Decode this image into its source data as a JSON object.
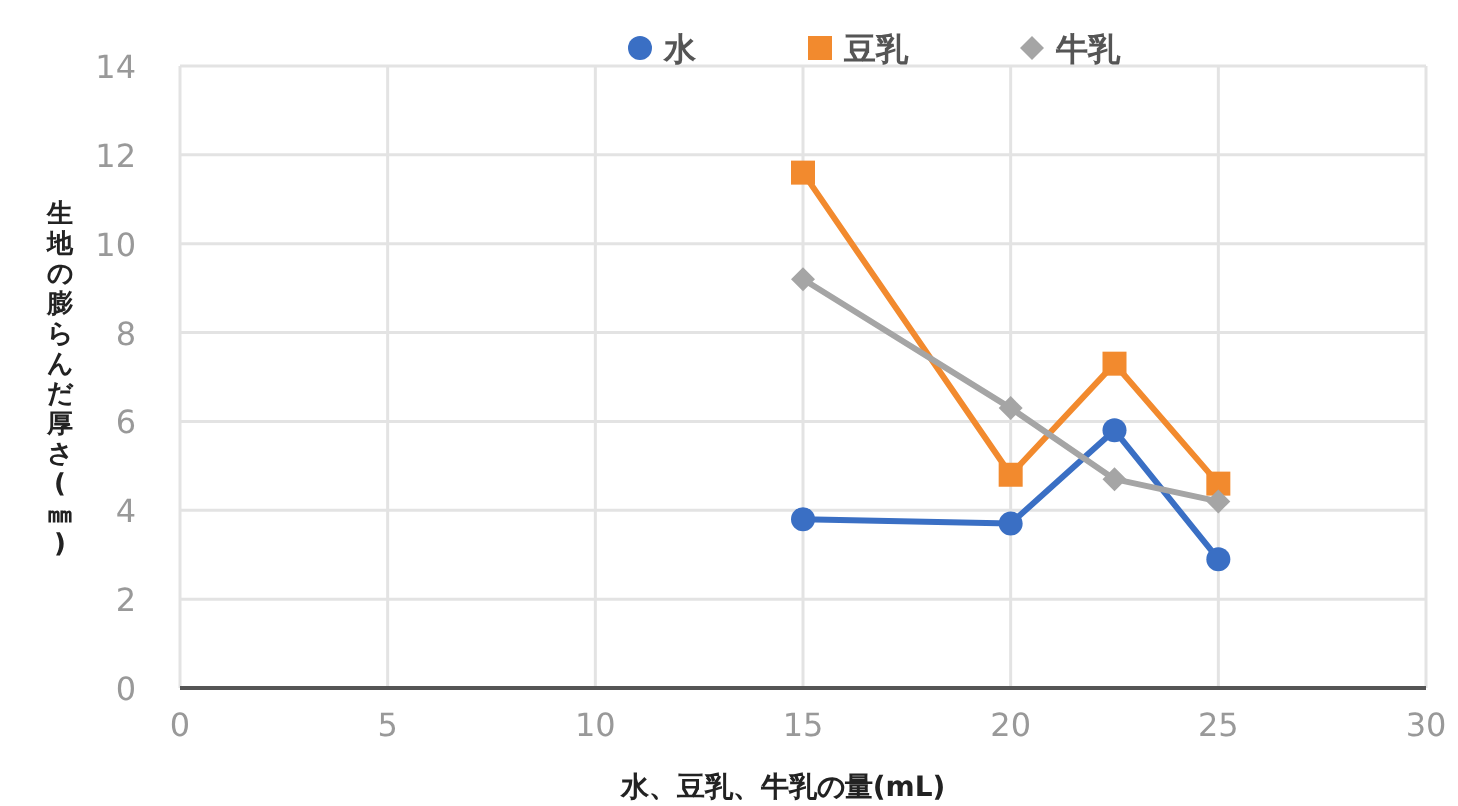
{
  "chart_data": {
    "type": "line",
    "xlabel": "水、豆乳、牛乳の量(mL)",
    "ylabel": "生地の膨らんだ厚さ(㎜)",
    "x": [
      15,
      20,
      22.5,
      25
    ],
    "series": [
      {
        "name": "水",
        "color": "#3a6fc4",
        "marker": "circle",
        "values": [
          3.8,
          3.7,
          5.8,
          2.9
        ]
      },
      {
        "name": "豆乳",
        "color": "#f28a2e",
        "marker": "square",
        "values": [
          11.6,
          4.8,
          7.3,
          4.6
        ]
      },
      {
        "name": "牛乳",
        "color": "#a5a5a5",
        "marker": "diamond",
        "values": [
          9.2,
          6.3,
          4.7,
          4.2
        ]
      }
    ],
    "xlim": [
      0,
      30
    ],
    "xticks": [
      0,
      5,
      10,
      15,
      20,
      25,
      30
    ],
    "ylim": [
      0,
      14
    ],
    "yticks": [
      0,
      2,
      4,
      6,
      8,
      10,
      12,
      14
    ],
    "grid": true,
    "legend": "top"
  }
}
